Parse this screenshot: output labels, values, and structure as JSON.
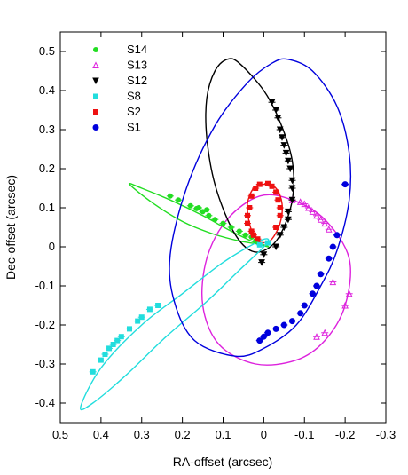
{
  "chart_data": {
    "type": "scatter",
    "xlabel": "RA-offset (arcsec)",
    "ylabel": "Dec-offset (arcsec)",
    "xlim": [
      0.5,
      -0.3
    ],
    "ylim": [
      -0.45,
      0.55
    ],
    "x_reversed": true,
    "x_ticks": [
      "0.5",
      "0.4",
      "0.3",
      "0.2",
      "0.1",
      "0",
      "-0.1",
      "-0.2",
      "-0.3"
    ],
    "y_ticks": [
      "-0.4",
      "-0.3",
      "-0.2",
      "-0.1",
      "0",
      "0.1",
      "0.2",
      "0.3",
      "0.4",
      "0.5"
    ],
    "grid": false,
    "legend_position": "top-left",
    "series": [
      {
        "name": "S14",
        "color": "#22dd22",
        "marker": "filled-circle",
        "orbit": [
          [
            0.33,
            0.16
          ],
          [
            0.27,
            0.11
          ],
          [
            0.2,
            0.065
          ],
          [
            0.13,
            0.035
          ],
          [
            0.06,
            0.015
          ],
          [
            0.0,
            0.005
          ],
          [
            -0.01,
            0.0
          ],
          [
            0.02,
            0.01
          ],
          [
            0.08,
            0.04
          ],
          [
            0.15,
            0.08
          ],
          [
            0.23,
            0.12
          ],
          [
            0.3,
            0.15
          ],
          [
            0.33,
            0.16
          ]
        ],
        "points": [
          [
            0.23,
            0.13
          ],
          [
            0.21,
            0.12
          ],
          [
            0.18,
            0.105
          ],
          [
            0.165,
            0.098
          ],
          [
            0.15,
            0.09
          ],
          [
            0.135,
            0.08
          ],
          [
            0.12,
            0.07
          ],
          [
            0.1,
            0.06
          ],
          [
            0.08,
            0.05
          ],
          [
            0.06,
            0.04
          ],
          [
            0.045,
            0.03
          ],
          [
            0.03,
            0.025
          ],
          [
            0.02,
            0.015
          ],
          [
            0.14,
            0.095
          ],
          [
            0.16,
            0.1
          ]
        ]
      },
      {
        "name": "S13",
        "color": "#dd22dd",
        "marker": "open-triangle",
        "orbit": [
          [
            0.01,
            0.13
          ],
          [
            -0.07,
            0.12
          ],
          [
            -0.15,
            0.07
          ],
          [
            -0.21,
            -0.03
          ],
          [
            -0.2,
            -0.15
          ],
          [
            -0.15,
            -0.24
          ],
          [
            -0.08,
            -0.29
          ],
          [
            0.02,
            -0.3
          ],
          [
            0.11,
            -0.25
          ],
          [
            0.15,
            -0.15
          ],
          [
            0.14,
            -0.03
          ],
          [
            0.09,
            0.07
          ],
          [
            0.01,
            0.13
          ]
        ],
        "points": [
          [
            -0.07,
            0.12
          ],
          [
            -0.09,
            0.115
          ],
          [
            -0.1,
            0.11
          ],
          [
            -0.11,
            0.1
          ],
          [
            -0.12,
            0.09
          ],
          [
            -0.13,
            0.08
          ],
          [
            -0.14,
            0.07
          ],
          [
            -0.15,
            0.06
          ],
          [
            -0.16,
            0.045
          ],
          [
            -0.17,
            -0.09
          ],
          [
            -0.21,
            -0.12
          ],
          [
            -0.2,
            -0.15
          ],
          [
            -0.15,
            -0.22
          ],
          [
            -0.13,
            -0.23
          ]
        ]
      },
      {
        "name": "S12",
        "color": "#000000",
        "marker": "open-triangle-down",
        "orbit": [
          [
            0.09,
            0.48
          ],
          [
            0.06,
            0.47
          ],
          [
            0.0,
            0.4
          ],
          [
            -0.04,
            0.32
          ],
          [
            -0.07,
            0.22
          ],
          [
            -0.07,
            0.12
          ],
          [
            -0.04,
            0.03
          ],
          [
            0.0,
            -0.01
          ],
          [
            0.04,
            -0.005
          ],
          [
            0.08,
            0.05
          ],
          [
            0.12,
            0.16
          ],
          [
            0.14,
            0.28
          ],
          [
            0.14,
            0.38
          ],
          [
            0.12,
            0.45
          ],
          [
            0.09,
            0.48
          ]
        ],
        "points": [
          [
            -0.02,
            0.37
          ],
          [
            -0.03,
            0.35
          ],
          [
            -0.035,
            0.33
          ],
          [
            -0.04,
            0.3
          ],
          [
            -0.045,
            0.28
          ],
          [
            -0.05,
            0.26
          ],
          [
            -0.055,
            0.24
          ],
          [
            -0.06,
            0.22
          ],
          [
            -0.065,
            0.2
          ],
          [
            -0.07,
            0.17
          ],
          [
            -0.07,
            0.15
          ],
          [
            -0.07,
            0.12
          ],
          [
            -0.06,
            0.09
          ],
          [
            -0.06,
            0.07
          ],
          [
            -0.05,
            0.05
          ],
          [
            -0.04,
            0.03
          ],
          [
            -0.03,
            0.0
          ],
          [
            0.0,
            -0.02
          ],
          [
            0.005,
            -0.04
          ]
        ]
      },
      {
        "name": "S8",
        "color": "#22dddd",
        "marker": "filled-square",
        "orbit": [
          [
            0.45,
            -0.41
          ],
          [
            0.4,
            -0.31
          ],
          [
            0.3,
            -0.2
          ],
          [
            0.2,
            -0.12
          ],
          [
            0.1,
            -0.04
          ],
          [
            0.02,
            0.01
          ],
          [
            -0.01,
            0.02
          ],
          [
            0.0,
            0.0
          ],
          [
            0.06,
            -0.06
          ],
          [
            0.14,
            -0.14
          ],
          [
            0.24,
            -0.23
          ],
          [
            0.34,
            -0.33
          ],
          [
            0.42,
            -0.4
          ],
          [
            0.45,
            -0.41
          ]
        ],
        "points": [
          [
            0.42,
            -0.32
          ],
          [
            0.4,
            -0.29
          ],
          [
            0.39,
            -0.275
          ],
          [
            0.38,
            -0.26
          ],
          [
            0.37,
            -0.25
          ],
          [
            0.36,
            -0.24
          ],
          [
            0.35,
            -0.23
          ],
          [
            0.33,
            -0.21
          ],
          [
            0.31,
            -0.19
          ],
          [
            0.3,
            -0.18
          ],
          [
            0.28,
            -0.16
          ],
          [
            0.26,
            -0.15
          ],
          [
            0.01,
            0.005
          ],
          [
            -0.01,
            0.01
          ]
        ]
      },
      {
        "name": "S2",
        "color": "#ee1111",
        "marker": "filled-square",
        "orbit": [
          [
            0.0,
            0.16
          ],
          [
            -0.03,
            0.15
          ],
          [
            -0.045,
            0.11
          ],
          [
            -0.04,
            0.06
          ],
          [
            -0.02,
            0.02
          ],
          [
            0.0,
            0.01
          ],
          [
            0.02,
            0.02
          ],
          [
            0.035,
            0.06
          ],
          [
            0.04,
            0.11
          ],
          [
            0.025,
            0.15
          ],
          [
            0.0,
            0.16
          ]
        ],
        "points": [
          [
            0.01,
            0.16
          ],
          [
            -0.01,
            0.162
          ],
          [
            -0.02,
            0.155
          ],
          [
            -0.03,
            0.14
          ],
          [
            -0.035,
            0.12
          ],
          [
            -0.04,
            0.1
          ],
          [
            -0.04,
            0.08
          ],
          [
            -0.03,
            0.05
          ],
          [
            0.02,
            0.15
          ],
          [
            0.03,
            0.13
          ],
          [
            0.035,
            0.1
          ],
          [
            0.04,
            0.08
          ],
          [
            0.04,
            0.06
          ],
          [
            0.03,
            0.04
          ],
          [
            0.025,
            0.03
          ],
          [
            0.015,
            0.02
          ]
        ]
      },
      {
        "name": "S1",
        "color": "#0000dd",
        "marker": "open-circle",
        "orbit": [
          [
            -0.06,
            0.48
          ],
          [
            -0.12,
            0.45
          ],
          [
            -0.18,
            0.36
          ],
          [
            -0.21,
            0.24
          ],
          [
            -0.21,
            0.12
          ],
          [
            -0.18,
            -0.01
          ],
          [
            -0.14,
            -0.1
          ],
          [
            -0.08,
            -0.2
          ],
          [
            0.0,
            -0.26
          ],
          [
            0.07,
            -0.28
          ],
          [
            0.17,
            -0.24
          ],
          [
            0.22,
            -0.14
          ],
          [
            0.23,
            -0.02
          ],
          [
            0.19,
            0.15
          ],
          [
            0.12,
            0.31
          ],
          [
            0.04,
            0.42
          ],
          [
            -0.02,
            0.47
          ],
          [
            -0.06,
            0.48
          ]
        ],
        "points": [
          [
            -0.2,
            0.16
          ],
          [
            -0.18,
            0.03
          ],
          [
            -0.17,
            0.0
          ],
          [
            -0.16,
            -0.03
          ],
          [
            -0.14,
            -0.07
          ],
          [
            -0.13,
            -0.1
          ],
          [
            -0.12,
            -0.12
          ],
          [
            -0.1,
            -0.15
          ],
          [
            -0.09,
            -0.17
          ],
          [
            -0.07,
            -0.19
          ],
          [
            -0.05,
            -0.2
          ],
          [
            -0.03,
            -0.21
          ],
          [
            -0.01,
            -0.22
          ],
          [
            0.0,
            -0.23
          ],
          [
            0.01,
            -0.24
          ]
        ]
      }
    ]
  }
}
